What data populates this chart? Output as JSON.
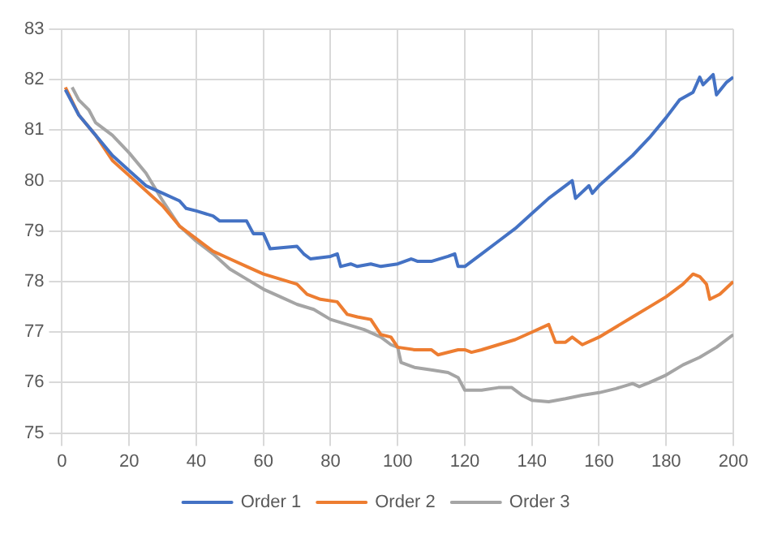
{
  "chart_data": {
    "type": "line",
    "xlim": [
      0,
      200
    ],
    "xticks": [
      0,
      20,
      40,
      60,
      80,
      100,
      120,
      140,
      160,
      180,
      200
    ],
    "ylim": [
      75,
      83
    ],
    "yticks": [
      75,
      76,
      77,
      78,
      79,
      80,
      81,
      82,
      83
    ],
    "grid": true,
    "legend": "bottom",
    "marker": "none",
    "line_style": "solid",
    "series": [
      {
        "name": "Order 1",
        "color": "#4472c4",
        "x": [
          1,
          5,
          10,
          15,
          20,
          25,
          30,
          35,
          37,
          40,
          45,
          47,
          55,
          57,
          60,
          62,
          70,
          72,
          74,
          80,
          82,
          83,
          86,
          88,
          92,
          95,
          100,
          104,
          106,
          110,
          115,
          117,
          118,
          120,
          125,
          130,
          135,
          140,
          145,
          150,
          152,
          153,
          157,
          158,
          160,
          165,
          170,
          175,
          180,
          184,
          188,
          190,
          191,
          194,
          195,
          198,
          200
        ],
        "values": [
          81.8,
          81.3,
          80.9,
          80.5,
          80.2,
          79.9,
          79.75,
          79.6,
          79.45,
          79.4,
          79.3,
          79.2,
          79.2,
          78.95,
          78.95,
          78.65,
          78.7,
          78.55,
          78.45,
          78.5,
          78.55,
          78.3,
          78.35,
          78.3,
          78.35,
          78.3,
          78.35,
          78.45,
          78.4,
          78.4,
          78.5,
          78.55,
          78.3,
          78.3,
          78.55,
          78.8,
          79.05,
          79.35,
          79.65,
          79.9,
          80.0,
          79.65,
          79.9,
          79.75,
          79.9,
          80.2,
          80.5,
          80.85,
          81.25,
          81.6,
          81.75,
          82.05,
          81.9,
          82.1,
          81.7,
          81.95,
          82.05
        ]
      },
      {
        "name": "Order 2",
        "color": "#ed7d31",
        "x": [
          1,
          5,
          10,
          15,
          20,
          25,
          30,
          35,
          40,
          45,
          50,
          55,
          60,
          65,
          70,
          73,
          77,
          82,
          85,
          88,
          92,
          95,
          98,
          100,
          105,
          110,
          112,
          118,
          120,
          122,
          125,
          130,
          135,
          140,
          145,
          147,
          150,
          152,
          155,
          160,
          165,
          170,
          175,
          180,
          185,
          188,
          190,
          192,
          193,
          196,
          200
        ],
        "values": [
          81.85,
          81.3,
          80.9,
          80.4,
          80.1,
          79.8,
          79.5,
          79.1,
          78.85,
          78.6,
          78.45,
          78.3,
          78.15,
          78.05,
          77.95,
          77.75,
          77.65,
          77.6,
          77.35,
          77.3,
          77.25,
          76.95,
          76.9,
          76.7,
          76.65,
          76.65,
          76.55,
          76.65,
          76.65,
          76.6,
          76.65,
          76.75,
          76.85,
          77.0,
          77.15,
          76.8,
          76.8,
          76.9,
          76.75,
          76.9,
          77.1,
          77.3,
          77.5,
          77.7,
          77.95,
          78.15,
          78.1,
          77.95,
          77.65,
          77.75,
          78.0
        ]
      },
      {
        "name": "Order 3",
        "color": "#a5a5a5",
        "x": [
          3,
          5,
          8,
          10,
          15,
          20,
          25,
          30,
          35,
          40,
          45,
          50,
          55,
          60,
          65,
          70,
          75,
          80,
          85,
          90,
          95,
          98,
          100,
          101,
          105,
          110,
          115,
          118,
          120,
          125,
          130,
          134,
          137,
          140,
          145,
          150,
          155,
          160,
          165,
          170,
          172,
          175,
          180,
          185,
          190,
          195,
          200
        ],
        "values": [
          81.85,
          81.6,
          81.4,
          81.15,
          80.9,
          80.55,
          80.15,
          79.6,
          79.1,
          78.8,
          78.55,
          78.25,
          78.05,
          77.85,
          77.7,
          77.55,
          77.45,
          77.25,
          77.15,
          77.05,
          76.9,
          76.75,
          76.7,
          76.4,
          76.3,
          76.25,
          76.2,
          76.1,
          75.85,
          75.85,
          75.9,
          75.9,
          75.75,
          75.65,
          75.62,
          75.68,
          75.75,
          75.8,
          75.88,
          75.98,
          75.92,
          76.0,
          76.15,
          76.35,
          76.5,
          76.7,
          76.95
        ]
      }
    ]
  }
}
